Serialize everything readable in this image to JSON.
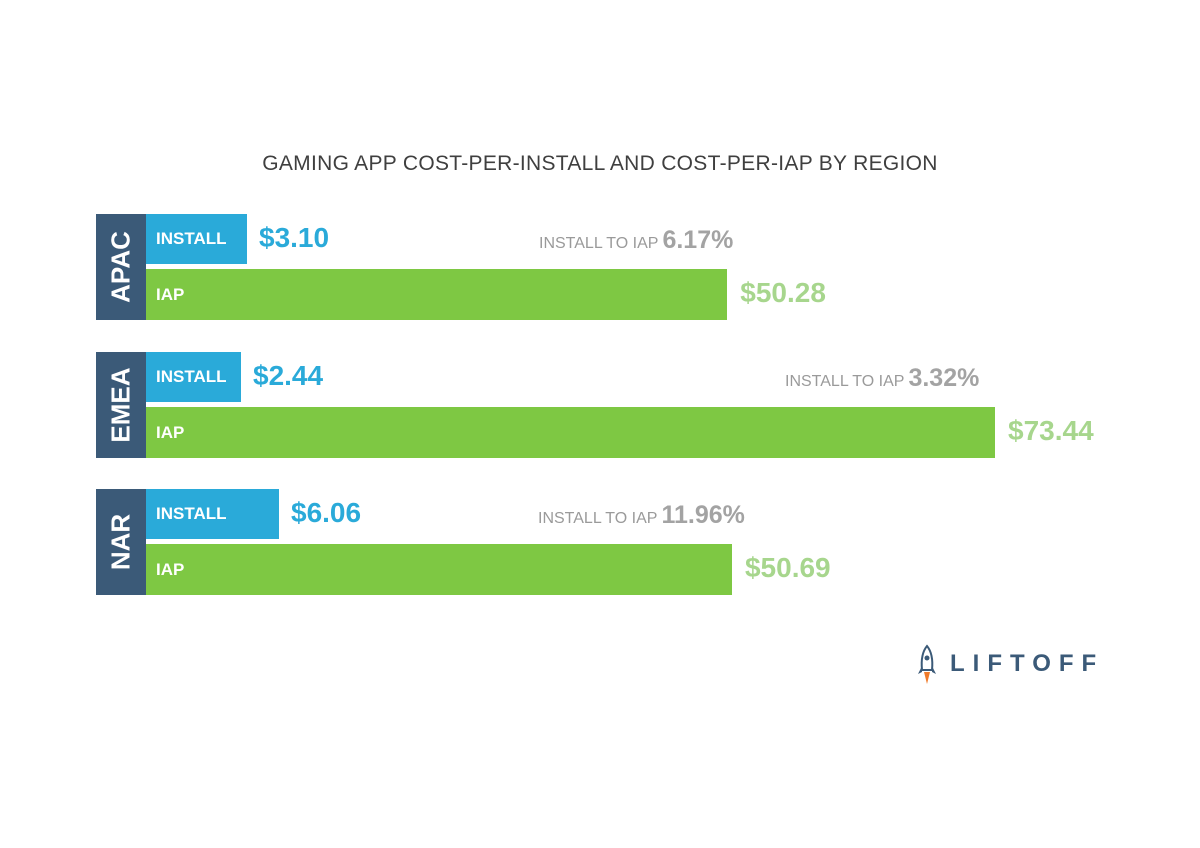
{
  "chart_data": {
    "type": "bar",
    "title": "GAMING APP COST-PER-INSTALL AND COST-PER-IAP BY REGION",
    "categories": [
      "APAC",
      "EMEA",
      "NAR"
    ],
    "series": [
      {
        "name": "INSTALL",
        "values": [
          3.1,
          2.44,
          6.06
        ],
        "labels": [
          "$3.10",
          "$2.44",
          "$6.06"
        ]
      },
      {
        "name": "IAP",
        "values": [
          50.28,
          73.44,
          50.69
        ],
        "labels": [
          "$50.28",
          "$73.44",
          "$50.69"
        ]
      }
    ],
    "ratio_label": "INSTALL TO IAP",
    "ratios": [
      "6.17%",
      "3.32%",
      "11.96%"
    ],
    "colors": {
      "install": "#2aaad9",
      "iap": "#7ec843",
      "region": "#3b5a78"
    }
  },
  "brand": {
    "logo_text": "LIFTOFF",
    "logo_icon": "rocket-icon"
  }
}
